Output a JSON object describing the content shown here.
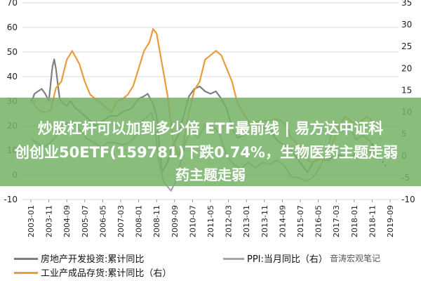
{
  "chart_data": {
    "type": "line",
    "x_ticks": [
      "2003-01",
      "2003-11",
      "2004-09",
      "2005-07",
      "2006-05",
      "2007-03",
      "2008-01",
      "2008-11",
      "2009-09",
      "2010-07",
      "2011-05",
      "2012-03",
      "2013-01",
      "2013-11",
      "2014-09",
      "2015-07",
      "2016-05",
      "2017-03",
      "2018-01",
      "2018-11",
      "2019-09"
    ],
    "y_left": {
      "ticks": [
        70,
        60,
        50,
        40,
        30,
        20,
        10,
        0,
        -10
      ],
      "ylim": [
        -10,
        70
      ]
    },
    "y_right": {
      "ticks": [
        35,
        30,
        25,
        20,
        15,
        10,
        5,
        0,
        -5,
        -10
      ],
      "ylim": [
        -10,
        35
      ]
    },
    "series": [
      {
        "name": "房地产开发投资:累计同比",
        "axis": "left",
        "color": "#7f7f7f",
        "x": [
          "2003-01",
          "2003-02",
          "2003-03",
          "2003-05",
          "2003-07",
          "2003-09",
          "2003-11",
          "2004-01",
          "2004-02",
          "2004-03",
          "2004-05",
          "2004-07",
          "2004-09",
          "2004-11",
          "2005-02",
          "2005-04",
          "2005-07",
          "2005-10",
          "2006-01",
          "2006-05",
          "2006-09",
          "2007-01",
          "2007-05",
          "2007-09",
          "2008-01",
          "2008-04",
          "2008-06",
          "2008-09",
          "2008-11",
          "2009-02",
          "2009-05",
          "2009-08",
          "2009-11",
          "2010-02",
          "2010-05",
          "2010-08",
          "2010-11",
          "2011-02",
          "2011-05",
          "2011-08",
          "2011-11",
          "2012-02",
          "2012-05",
          "2012-08",
          "2012-11",
          "2013-02",
          "2013-05",
          "2013-08",
          "2013-11",
          "2014-02",
          "2014-05",
          "2014-08",
          "2014-11",
          "2015-02",
          "2015-05",
          "2015-08",
          "2015-11",
          "2016-02",
          "2016-05",
          "2016-08",
          "2016-11",
          "2017-02",
          "2017-05",
          "2017-08",
          "2017-11",
          "2018-02",
          "2018-05",
          "2018-08",
          "2018-11"
        ],
        "y": [
          30,
          31,
          33,
          34,
          35,
          33,
          30,
          44,
          47,
          43,
          31,
          29,
          28,
          30,
          27,
          26,
          24,
          22,
          20,
          22,
          24,
          24,
          26,
          27,
          31,
          32,
          33,
          29,
          24,
          1,
          5,
          12,
          16,
          24,
          32,
          35,
          36,
          34,
          33,
          34,
          31,
          27,
          19,
          15,
          16,
          22,
          21,
          20,
          19,
          19,
          15,
          13,
          12,
          10,
          7,
          4,
          1,
          5,
          7,
          6,
          6,
          8,
          8,
          7,
          7,
          9,
          10,
          10,
          9
        ]
      },
      {
        "name": "PPI:当月同比",
        "axis": "right",
        "color": "#222222",
        "dashed": true,
        "x": [
          "2018-11",
          "2019-01",
          "2019-03",
          "2019-05",
          "2019-07"
        ],
        "y": [
          2.7,
          0.1,
          -0.5,
          -1.5,
          -2.5
        ]
      },
      {
        "name": "工业产成品存货:累计同比",
        "axis": "right",
        "color": "#ed9a3b",
        "x": [
          "2003-01",
          "2003-02",
          "2003-04",
          "2003-07",
          "2003-10",
          "2003-12",
          "2004-03",
          "2004-06",
          "2004-09",
          "2004-12",
          "2005-04",
          "2005-07",
          "2005-10",
          "2006-01",
          "2006-04",
          "2006-07",
          "2006-10",
          "2007-01",
          "2007-04",
          "2007-07",
          "2007-10",
          "2008-01",
          "2008-04",
          "2008-07",
          "2008-09",
          "2008-11",
          "2009-02",
          "2009-05",
          "2009-08",
          "2009-11",
          "2010-02",
          "2010-05",
          "2010-08",
          "2010-11",
          "2011-02",
          "2011-05",
          "2011-08",
          "2011-11",
          "2012-02",
          "2012-05",
          "2012-08",
          "2012-11",
          "2013-02",
          "2013-05",
          "2013-08",
          "2013-11",
          "2014-02",
          "2014-05",
          "2014-08",
          "2014-11",
          "2015-02",
          "2015-05",
          "2015-08",
          "2015-11",
          "2016-02",
          "2016-05",
          "2016-08",
          "2016-11",
          "2017-02",
          "2017-05",
          "2017-08",
          "2017-11",
          "2018-02",
          "2018-05",
          "2018-08",
          "2018-11"
        ],
        "y": [
          12,
          12.5,
          11,
          10,
          10,
          10.5,
          15.5,
          17,
          22,
          24,
          21,
          17,
          14,
          13,
          12,
          11,
          10,
          12.5,
          13,
          14,
          16,
          20,
          24,
          26,
          29,
          28,
          21,
          14,
          4,
          0,
          3,
          10,
          15,
          17,
          22,
          23,
          24,
          23,
          20,
          17,
          12,
          10,
          8,
          7.5,
          8,
          8,
          8,
          8.5,
          8,
          7,
          4,
          3,
          1,
          -1,
          -1.5,
          -1,
          -0.5,
          1,
          4,
          7,
          9,
          8,
          7,
          8,
          9,
          8
        ]
      },
      {
        "name": "PPI:当月同比",
        "axis": "right",
        "color": "#a6a6a6",
        "x": [
          "2003-01",
          "2003-04",
          "2003-08",
          "2003-12",
          "2004-04",
          "2004-08",
          "2004-12",
          "2005-04",
          "2005-08",
          "2005-12",
          "2006-04",
          "2006-08",
          "2006-12",
          "2007-04",
          "2007-08",
          "2007-12",
          "2008-03",
          "2008-06",
          "2008-08",
          "2008-10",
          "2008-12",
          "2009-03",
          "2009-07",
          "2009-10",
          "2009-12",
          "2010-03",
          "2010-06",
          "2010-10",
          "2011-02",
          "2011-06",
          "2011-10",
          "2012-02",
          "2012-06",
          "2012-10",
          "2013-02",
          "2013-06",
          "2013-10",
          "2014-02",
          "2014-06",
          "2014-10",
          "2015-02",
          "2015-06",
          "2015-10",
          "2016-02",
          "2016-06",
          "2016-10",
          "2017-02",
          "2017-06",
          "2017-10",
          "2018-02",
          "2018-06",
          "2018-09",
          "2018-11"
        ],
        "y": [
          4,
          3,
          2,
          3,
          5,
          7,
          8,
          6,
          4,
          3,
          2,
          3,
          3,
          2.5,
          3,
          5,
          8,
          9,
          10,
          7,
          -1,
          -6,
          -8,
          -5.5,
          -2,
          3,
          6,
          4,
          7,
          7,
          5,
          0,
          -2,
          -3,
          -1.5,
          -2.7,
          -1.5,
          -2,
          -1,
          -2.2,
          -4.8,
          -5,
          -5.8,
          -4.9,
          -2.6,
          1.2,
          7.8,
          5.5,
          6.9,
          3.7,
          4.7,
          3.6,
          2.7
        ]
      }
    ]
  },
  "banner": {
    "line1": "炒股杠杆可以加到多少倍 ETF最前线 | 易方达中证科",
    "line2": "创创业50ETF(159781)下跌0.74%，生物医药主题走弱",
    "line3": "药主题走弱"
  },
  "legend": {
    "item1": "房地产开发投资:累计同比",
    "item2": "PPI:当月同比（右）",
    "item3": "工业产成品存货:累计同比（右）"
  },
  "watermark": "音涛宏观笔记"
}
